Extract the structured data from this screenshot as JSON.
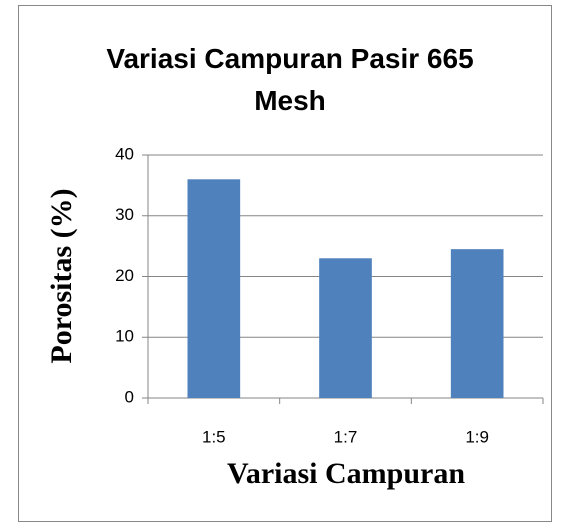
{
  "chart_data": {
    "type": "bar",
    "title": "Variasi Campuran Pasir 665 Mesh",
    "categories": [
      "1:5",
      "1:7",
      "1:9"
    ],
    "values": [
      36,
      23,
      24.5
    ],
    "color": "#4f81bd",
    "ylim": [
      0,
      40
    ],
    "yticks": [
      0,
      10,
      20,
      30,
      40
    ],
    "grid": true,
    "x_label": "Variasi Campuran",
    "y_label": "Porositas (%)"
  }
}
